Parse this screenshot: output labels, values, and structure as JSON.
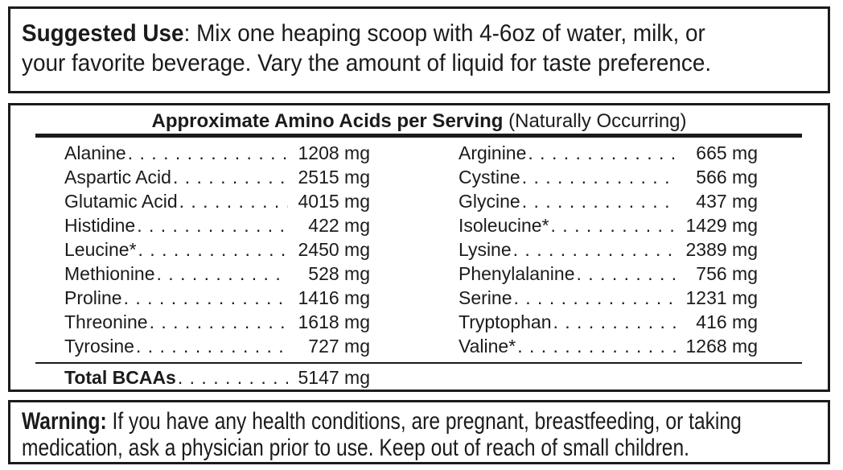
{
  "suggested_use": {
    "label": "Suggested Use",
    "line1_rest": ": Mix one heaping scoop with 4-6oz of water, milk, or",
    "line2": "your favorite beverage. Vary the amount of liquid for taste preference."
  },
  "amino_panel": {
    "title_bold": "Approximate Amino Acids per Serving",
    "title_note": " (Naturally Occurring)",
    "left": [
      {
        "name": "Alanine",
        "value": "1208 mg"
      },
      {
        "name": "Aspartic Acid",
        "value": "2515 mg"
      },
      {
        "name": "Glutamic Acid",
        "value": "4015 mg"
      },
      {
        "name": "Histidine",
        "value": "422 mg"
      },
      {
        "name": "Leucine*",
        "value": "2450 mg"
      },
      {
        "name": "Methionine",
        "value": "528 mg"
      },
      {
        "name": "Proline",
        "value": "1416 mg"
      },
      {
        "name": "Threonine",
        "value": "1618 mg"
      },
      {
        "name": "Tyrosine",
        "value": "727 mg"
      }
    ],
    "right": [
      {
        "name": "Arginine",
        "value": "665 mg"
      },
      {
        "name": "Cystine",
        "value": "566 mg"
      },
      {
        "name": "Glycine",
        "value": "437 mg"
      },
      {
        "name": "Isoleucine*",
        "value": "1429 mg"
      },
      {
        "name": "Lysine",
        "value": "2389 mg"
      },
      {
        "name": "Phenylalanine",
        "value": "756 mg"
      },
      {
        "name": "Serine",
        "value": "1231 mg"
      },
      {
        "name": "Tryptophan",
        "value": "416 mg"
      },
      {
        "name": "Valine*",
        "value": "1268 mg"
      }
    ],
    "total": {
      "label": "Total BCAAs",
      "value": "5147 mg"
    }
  },
  "warning": {
    "label": "Warning:",
    "line1_rest": " If you have any health conditions, are pregnant, breastfeeding, or taking",
    "line2": "medication, ask a physician prior to use. Keep out of reach of small children."
  },
  "colors": {
    "text": "#1b1b1b",
    "border": "#1b1b1b",
    "background": "#ffffff"
  }
}
